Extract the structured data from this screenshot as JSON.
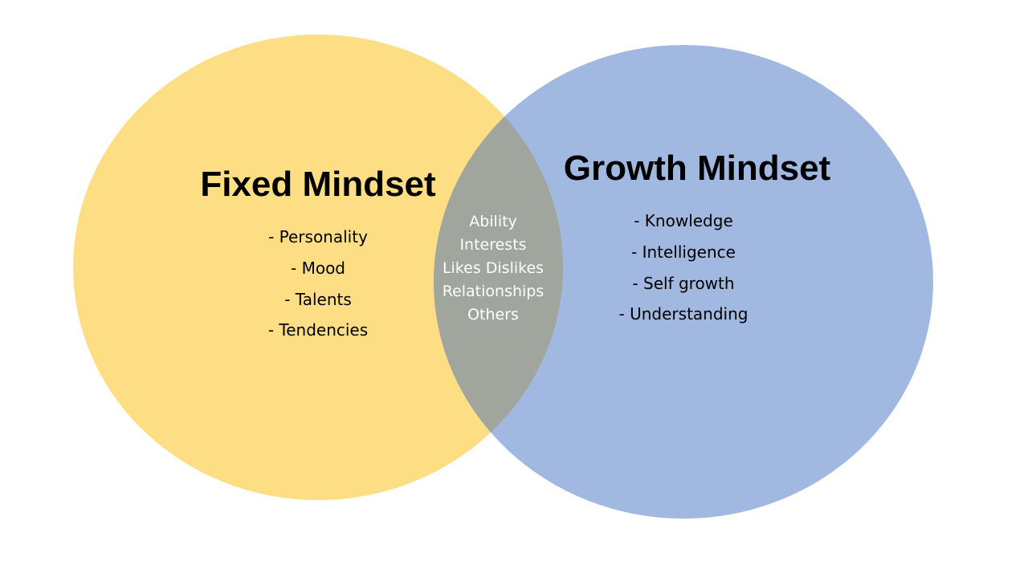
{
  "colors": {
    "fixed": "#fdde84",
    "growth": "#a1b8e0",
    "overlap": "#a0a59e"
  },
  "fixed": {
    "title": "Fixed Mindset",
    "items": [
      "- Personality",
      "- Mood",
      "- Talents",
      "- Tendencies"
    ]
  },
  "growth": {
    "title": "Growth Mindset",
    "items": [
      "- Knowledge",
      "- Intelligence",
      "- Self growth",
      "- Understanding"
    ]
  },
  "overlap": {
    "items": [
      "Ability",
      "Interests",
      "Likes Dislikes",
      "Relationships",
      "Others"
    ]
  }
}
